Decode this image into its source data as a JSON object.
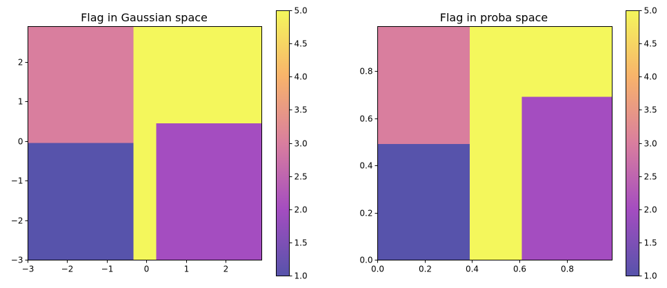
{
  "chart_data": [
    {
      "type": "heatmap",
      "title": "Flag in Gaussian space",
      "xlabel": "",
      "ylabel": "",
      "xlim": [
        -3,
        2.9
      ],
      "ylim": [
        -3,
        2.9
      ],
      "xticks": [
        -3,
        -2,
        -1,
        0,
        1,
        2
      ],
      "yticks": [
        -3,
        -2,
        -1,
        0,
        1,
        2
      ],
      "xtick_labels": [
        "−3",
        "−2",
        "−1",
        "0",
        "1",
        "2"
      ],
      "ytick_labels": [
        "−3",
        "−2",
        "−1",
        "0",
        "1",
        "2"
      ],
      "regions": [
        {
          "value": 3,
          "x": [
            -3,
            -0.33
          ],
          "y": [
            -0.05,
            2.9
          ]
        },
        {
          "value": 1,
          "x": [
            -3,
            -0.33
          ],
          "y": [
            -3,
            -0.05
          ]
        },
        {
          "value": 5,
          "x": [
            -0.33,
            2.9
          ],
          "y": [
            0.45,
            2.9
          ]
        },
        {
          "value": 5,
          "x": [
            -0.33,
            0.25
          ],
          "y": [
            -3,
            0.45
          ]
        },
        {
          "value": 2,
          "x": [
            0.25,
            2.9
          ],
          "y": [
            -3,
            0.45
          ]
        }
      ],
      "colorbar": {
        "range": [
          1.0,
          5.0
        ],
        "ticks": [
          "1.0",
          "1.5",
          "2.0",
          "2.5",
          "3.0",
          "3.5",
          "4.0",
          "4.5",
          "5.0"
        ],
        "colors": [
          "#5753ab",
          "#a44dc0",
          "#d97e9e",
          "#f8b36b",
          "#f4f75c"
        ]
      }
    },
    {
      "type": "heatmap",
      "title": "Flag in proba space",
      "xlabel": "",
      "ylabel": "",
      "xlim": [
        0,
        0.99
      ],
      "ylim": [
        0,
        0.99
      ],
      "xticks": [
        0,
        0.2,
        0.4,
        0.6,
        0.8
      ],
      "yticks": [
        0,
        0.2,
        0.4,
        0.6,
        0.8
      ],
      "xtick_labels": [
        "0.0",
        "0.2",
        "0.4",
        "0.6",
        "0.8"
      ],
      "ytick_labels": [
        "0.0",
        "0.2",
        "0.4",
        "0.6",
        "0.8"
      ],
      "regions": [
        {
          "value": 3,
          "x": [
            0,
            0.39
          ],
          "y": [
            0.49,
            0.99
          ]
        },
        {
          "value": 1,
          "x": [
            0,
            0.39
          ],
          "y": [
            0,
            0.49
          ]
        },
        {
          "value": 5,
          "x": [
            0.39,
            0.99
          ],
          "y": [
            0.69,
            0.99
          ]
        },
        {
          "value": 5,
          "x": [
            0.39,
            0.61
          ],
          "y": [
            0,
            0.69
          ]
        },
        {
          "value": 2,
          "x": [
            0.61,
            0.99
          ],
          "y": [
            0,
            0.69
          ]
        }
      ],
      "colorbar": {
        "range": [
          1.0,
          5.0
        ],
        "ticks": [
          "1.0",
          "1.5",
          "2.0",
          "2.5",
          "3.0",
          "3.5",
          "4.0",
          "4.5",
          "5.0"
        ],
        "colors": [
          "#5753ab",
          "#a44dc0",
          "#d97e9e",
          "#f8b36b",
          "#f4f75c"
        ]
      }
    }
  ],
  "value_colors": {
    "1": "#5753ab",
    "2": "#a44dc0",
    "3": "#d97e9e",
    "5": "#f4f75c"
  }
}
